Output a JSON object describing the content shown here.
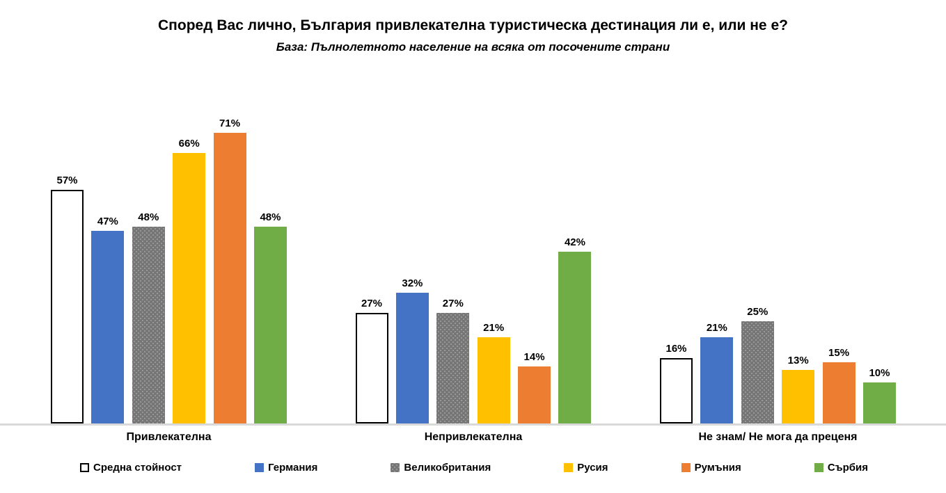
{
  "chart_data": {
    "type": "bar",
    "title": "Според Вас лично, България привлекателна туристическа дестинация ли е, или не е?",
    "subtitle": "База: Пълнолетното население на всяка от посочените страни",
    "categories": [
      "Привлекателна",
      "Непривлекателна",
      "Не знам/ Не мога да преценя"
    ],
    "series": [
      {
        "name": "Средна стойност",
        "values": [
          57,
          27,
          16
        ],
        "color": "#FFFFFF",
        "border_color": "#000000"
      },
      {
        "name": "Германия",
        "values": [
          47,
          32,
          21
        ],
        "color": "#4472C4"
      },
      {
        "name": "Великобритания",
        "values": [
          48,
          27,
          25
        ],
        "color": "#767676",
        "fill_pattern": "light-dots"
      },
      {
        "name": "Русия",
        "values": [
          66,
          21,
          13
        ],
        "color": "#FFC000"
      },
      {
        "name": "Румъния",
        "values": [
          71,
          14,
          15
        ],
        "color": "#ED7D31"
      },
      {
        "name": "Сърбия",
        "values": [
          48,
          42,
          10
        ],
        "color": "#70AD47"
      }
    ],
    "value_label_format": "{value}%",
    "ylim": [
      0,
      80
    ],
    "grid": false,
    "value_labels": true,
    "legend_position": "bottom",
    "axis_line_color": "#D9D9D9"
  }
}
